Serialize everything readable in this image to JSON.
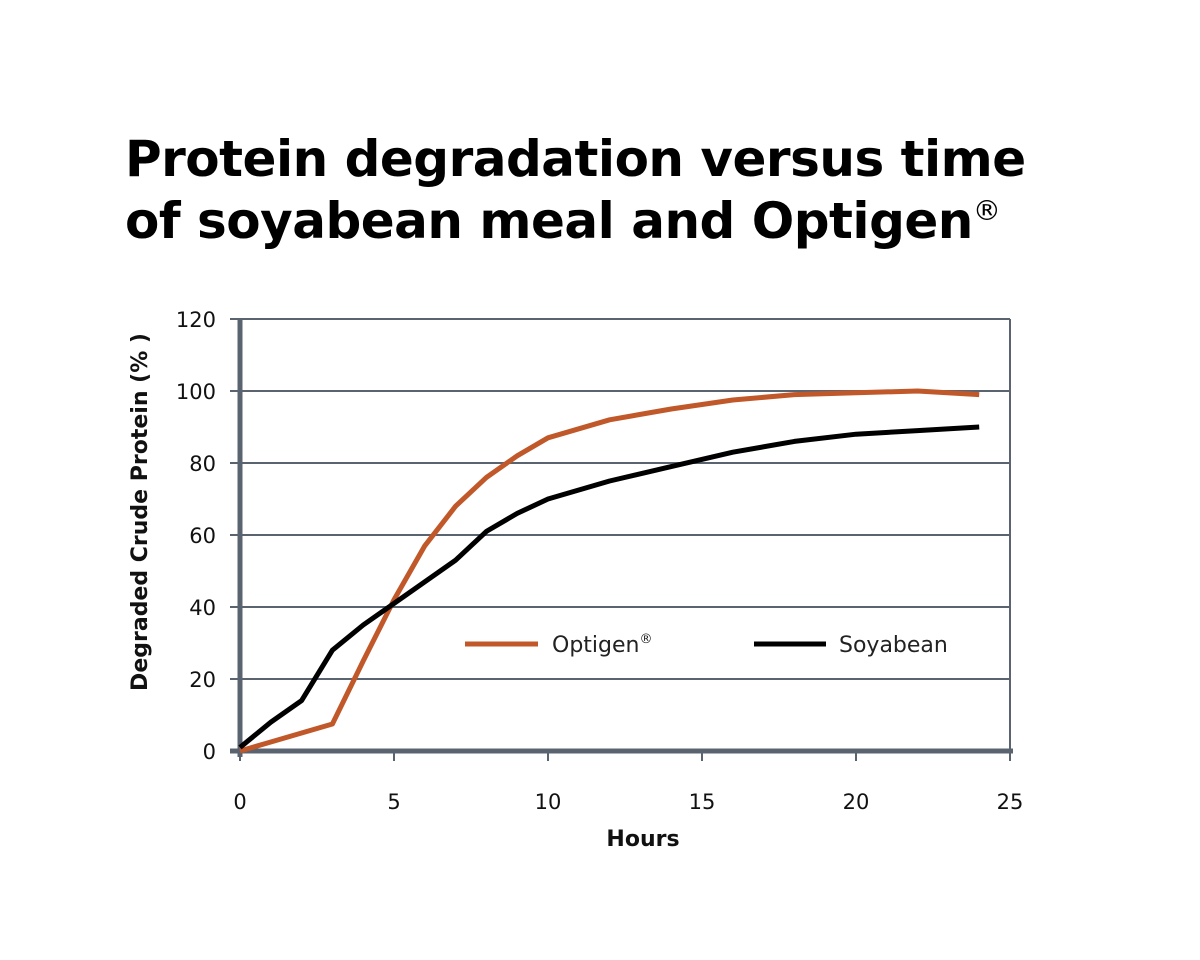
{
  "colors": {
    "optigen": "#c0582a",
    "soyabean": "#000000",
    "grid": "#5a6470",
    "axis": "#5a6470"
  },
  "title": {
    "line1": "Protein degradation versus time",
    "line2": "of soyabean meal and Optigen",
    "line2_mark": "®"
  },
  "chart_data": {
    "type": "line",
    "title": "Protein degradation versus time of soyabean meal and Optigen®",
    "xlabel": "Hours",
    "ylabel": "Degraded Crude Protein (% )",
    "xlim": [
      0,
      25
    ],
    "ylim": [
      0,
      120
    ],
    "xticks": [
      0,
      5,
      10,
      15,
      20,
      25
    ],
    "yticks": [
      0,
      20,
      40,
      60,
      80,
      100,
      120
    ],
    "grid": true,
    "legend_position": "center-right",
    "series": [
      {
        "name": "Optigen®",
        "color": "#c0582a",
        "x": [
          0,
          1,
          2,
          3,
          4,
          5,
          6,
          7,
          8,
          9,
          10,
          12,
          14,
          16,
          18,
          20,
          22,
          24
        ],
        "y": [
          0,
          2.5,
          5,
          7.5,
          25,
          42,
          57,
          68,
          76,
          82,
          87,
          92,
          95,
          97.5,
          99,
          99.5,
          100,
          99
        ]
      },
      {
        "name": "Soyabean",
        "color": "#000000",
        "x": [
          0,
          1,
          2,
          3,
          4,
          5,
          6,
          7,
          8,
          9,
          10,
          12,
          14,
          16,
          18,
          20,
          22,
          24
        ],
        "y": [
          1,
          8,
          14,
          28,
          35,
          41,
          47,
          53,
          61,
          66,
          70,
          75,
          79,
          83,
          86,
          88,
          89,
          90
        ]
      }
    ]
  }
}
